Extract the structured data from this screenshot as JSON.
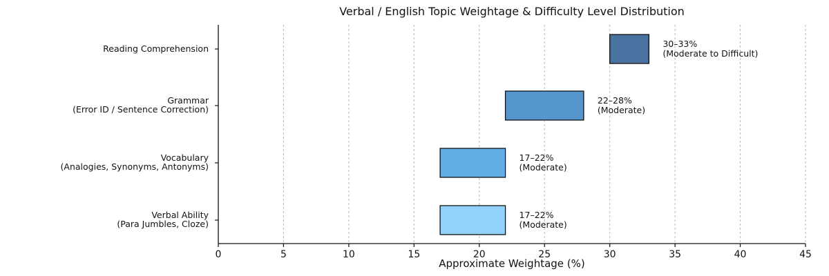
{
  "chart_data": {
    "type": "bar",
    "orientation": "horizontal",
    "title": "Verbal / English Topic Weightage & Difficulty Level Distribution",
    "xlabel": "Approximate Weightage (%)",
    "ylabel": "",
    "xlim": [
      0,
      45
    ],
    "xticks": [
      0,
      5,
      10,
      15,
      20,
      25,
      30,
      35,
      40,
      45
    ],
    "grid": "vertical dashed",
    "categories": [
      {
        "line1": "Reading Comprehension",
        "line2": ""
      },
      {
        "line1": "Grammar",
        "line2": "(Error ID / Sentence Correction)"
      },
      {
        "line1": "Vocabulary",
        "line2": "(Analogies, Synonyms, Antonyms)"
      },
      {
        "line1": "Verbal Ability",
        "line2": "(Para Jumbles, Cloze)"
      }
    ],
    "ranges": [
      {
        "start": 30,
        "end": 33,
        "color": "#4a72a0",
        "label1": "30–33%",
        "label2": "(Moderate to Difficult)"
      },
      {
        "start": 22,
        "end": 28,
        "color": "#5596cc",
        "label1": "22–28%",
        "label2": "(Moderate)"
      },
      {
        "start": 17,
        "end": 22,
        "color": "#62afe8",
        "label1": "17–22%",
        "label2": "(Moderate)"
      },
      {
        "start": 17,
        "end": 22,
        "color": "#92d2fb",
        "label1": "17–22%",
        "label2": "(Moderate)"
      }
    ]
  }
}
